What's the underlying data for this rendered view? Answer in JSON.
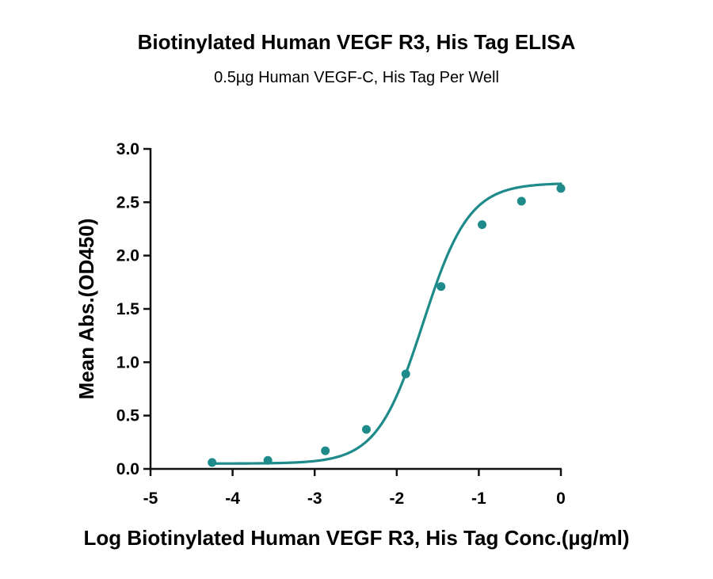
{
  "chart_data": {
    "type": "line",
    "title": "Biotinylated Human VEGF R3, His Tag ELISA",
    "subtitle": "0.5µg Human VEGF-C, His Tag Per Well",
    "xlabel": "Log Biotinylated Human VEGF R3, His Tag Conc.(µg/ml)",
    "ylabel": "Mean Abs.(OD450)",
    "xlim": [
      -5,
      0
    ],
    "ylim": [
      0,
      3.0
    ],
    "xticks": [
      -5,
      -4,
      -3,
      -2,
      -1,
      0
    ],
    "xtick_labels": [
      "-5",
      "-4",
      "-3",
      "-2",
      "-1",
      "0"
    ],
    "yticks": [
      0,
      0.5,
      1.0,
      1.5,
      2.0,
      2.5,
      3.0
    ],
    "ytick_labels": [
      "0.0",
      "0.5",
      "1.0",
      "1.5",
      "2.0",
      "2.5",
      "3.0"
    ],
    "grid": false,
    "series": [
      {
        "color": "#1f8a8a",
        "x": [
          -4.25,
          -3.57,
          -2.87,
          -2.37,
          -1.89,
          -1.46,
          -0.96,
          -0.48,
          0.0
        ],
        "values": [
          0.06,
          0.08,
          0.17,
          0.37,
          0.89,
          1.71,
          2.29,
          2.51,
          2.63
        ],
        "fit": "four-parameter-logistic"
      }
    ]
  }
}
